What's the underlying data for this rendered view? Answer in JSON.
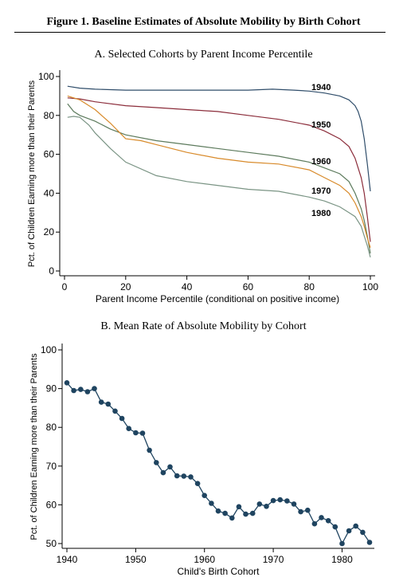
{
  "figure": {
    "title": "Figure 1. Baseline Estimates of Absolute Mobility by Birth Cohort"
  },
  "chart_data": [
    {
      "type": "line",
      "panel": "A",
      "title": "A. Selected Cohorts by Parent Income Percentile",
      "xlabel": "Parent Income Percentile (conditional on positive income)",
      "ylabel": "Pct. of Children Earning more than their Parents",
      "xlim": [
        0,
        100
      ],
      "ylim": [
        0,
        100
      ],
      "xticks": [
        0,
        20,
        40,
        60,
        80,
        100
      ],
      "yticks": [
        0,
        20,
        40,
        60,
        80,
        100
      ],
      "grid": false,
      "legend": "inline labels at right",
      "series": [
        {
          "name": "1940",
          "color": "#2f4d6a",
          "x": [
            1,
            5,
            10,
            20,
            30,
            40,
            50,
            60,
            68,
            75,
            80,
            85,
            90,
            93,
            95,
            96,
            97,
            98,
            99,
            100
          ],
          "y": [
            95,
            94,
            93.5,
            93,
            93,
            93,
            93,
            93,
            93.5,
            93,
            92.5,
            91.5,
            90,
            88,
            85,
            82,
            77,
            68,
            55,
            41
          ]
        },
        {
          "name": "1950",
          "color": "#8b2c3a",
          "x": [
            1,
            5,
            10,
            20,
            30,
            40,
            50,
            60,
            70,
            80,
            85,
            90,
            93,
            95,
            97,
            98,
            99,
            100
          ],
          "y": [
            89,
            88.5,
            87,
            85,
            84,
            83,
            82,
            80,
            78,
            75,
            72,
            68,
            64,
            58,
            48,
            40,
            28,
            15
          ]
        },
        {
          "name": "1960",
          "color": "#5c7a5c",
          "x": [
            1,
            3,
            5,
            10,
            15,
            20,
            30,
            40,
            50,
            60,
            70,
            80,
            85,
            90,
            93,
            95,
            97,
            98,
            99,
            100
          ],
          "y": [
            86,
            82,
            80,
            77,
            73,
            70,
            67,
            65,
            63,
            61,
            59,
            56,
            53,
            50,
            46,
            40,
            32,
            26,
            18,
            9
          ]
        },
        {
          "name": "1970",
          "color": "#d88a2a",
          "x": [
            1,
            3,
            5,
            10,
            15,
            20,
            25,
            30,
            40,
            50,
            60,
            70,
            80,
            85,
            90,
            93,
            95,
            97,
            98,
            99,
            100
          ],
          "y": [
            90,
            89,
            88,
            83,
            76,
            68,
            67,
            65,
            61,
            58,
            56,
            55,
            52,
            48,
            44,
            40,
            35,
            28,
            23,
            17,
            12
          ]
        },
        {
          "name": "1980",
          "color": "#7a9484",
          "x": [
            1,
            3,
            5,
            8,
            10,
            15,
            20,
            30,
            40,
            50,
            60,
            70,
            80,
            85,
            90,
            93,
            95,
            97,
            98,
            99,
            100
          ],
          "y": [
            79,
            79.5,
            79,
            75,
            71,
            63,
            56,
            49,
            46,
            44,
            42,
            41,
            38,
            36,
            33,
            30,
            28,
            23,
            18,
            13,
            7
          ]
        }
      ]
    },
    {
      "type": "line",
      "panel": "B",
      "title": "B. Mean Rate of Absolute Mobility by Cohort",
      "xlabel": "Child's Birth Cohort",
      "ylabel": "Pct. of Children Earning more than their Parents",
      "xlim": [
        1940,
        1984
      ],
      "ylim": [
        50,
        100
      ],
      "xticks": [
        1940,
        1950,
        1960,
        1970,
        1980
      ],
      "yticks": [
        50,
        60,
        70,
        80,
        90,
        100
      ],
      "grid": false,
      "markers": true,
      "color": "#1f4460",
      "series": [
        {
          "x": [
            1940,
            1941,
            1942,
            1943,
            1944,
            1945,
            1946,
            1947,
            1948,
            1949,
            1950,
            1951,
            1952,
            1953,
            1954,
            1955,
            1956,
            1957,
            1958,
            1959,
            1960,
            1961,
            1962,
            1963,
            1964,
            1965,
            1966,
            1967,
            1968,
            1969,
            1970,
            1971,
            1972,
            1973,
            1974,
            1975,
            1976,
            1977,
            1978,
            1979,
            1980,
            1981,
            1982,
            1983,
            1984
          ],
          "y": [
            91.5,
            89.5,
            89.8,
            89.2,
            90,
            86.5,
            86,
            84.2,
            82.3,
            79.7,
            78.6,
            78.5,
            74.1,
            70.9,
            68.3,
            69.8,
            67.5,
            67.4,
            67.2,
            65.5,
            62.4,
            60.4,
            58.4,
            57.8,
            56.6,
            59.5,
            57.6,
            57.8,
            60.2,
            59.6,
            61.1,
            61.3,
            61,
            60.2,
            58.2,
            58.6,
            55.1,
            56.7,
            55.9,
            54.3,
            50,
            53.3,
            54.5,
            52.9,
            50.3
          ]
        }
      ]
    }
  ]
}
